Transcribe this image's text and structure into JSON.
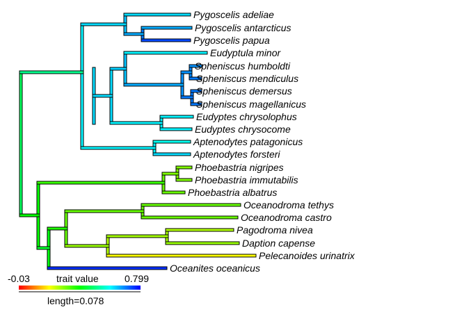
{
  "tips": [
    {
      "label": "Pygoscelis adeliae",
      "value": 0.62
    },
    {
      "label": "Pygoscelis antarcticus",
      "value": 0.66
    },
    {
      "label": "Pygoscelis papua",
      "value": 0.74
    },
    {
      "label": "Eudyptula minor",
      "value": 0.6
    },
    {
      "label": "Spheniscus humboldti",
      "value": 0.68
    },
    {
      "label": "Spheniscus mendiculus",
      "value": 0.7
    },
    {
      "label": "Spheniscus demersus",
      "value": 0.7
    },
    {
      "label": "Spheniscus magellanicus",
      "value": 0.7
    },
    {
      "label": "Eudyptes chrysolophus",
      "value": 0.6
    },
    {
      "label": "Eudyptes chrysocome",
      "value": 0.6
    },
    {
      "label": "Aptenodytes patagonicus",
      "value": 0.58
    },
    {
      "label": "Aptenodytes forsteri",
      "value": 0.62
    },
    {
      "label": "Phoebastria nigripes",
      "value": 0.28
    },
    {
      "label": "Phoebastria immutabilis",
      "value": 0.28
    },
    {
      "label": "Phoebastria albatrus",
      "value": 0.3
    },
    {
      "label": "Oceanodroma tethys",
      "value": 0.3
    },
    {
      "label": "Oceanodroma castro",
      "value": 0.3
    },
    {
      "label": "Pagodroma nivea",
      "value": 0.24
    },
    {
      "label": "Daption capense",
      "value": 0.26
    },
    {
      "label": "Pelecanoides urinatrix",
      "value": 0.18
    },
    {
      "label": "Oceanites oceanicus",
      "value": 0.76
    }
  ],
  "legend": {
    "min_label": "-0.03",
    "max_label": "0.799",
    "title": "trait value",
    "length_label": "length=0.078",
    "colormap": [
      "#ff0000",
      "#ffff00",
      "#00ff00",
      "#00ffff",
      "#0000ff"
    ]
  }
}
